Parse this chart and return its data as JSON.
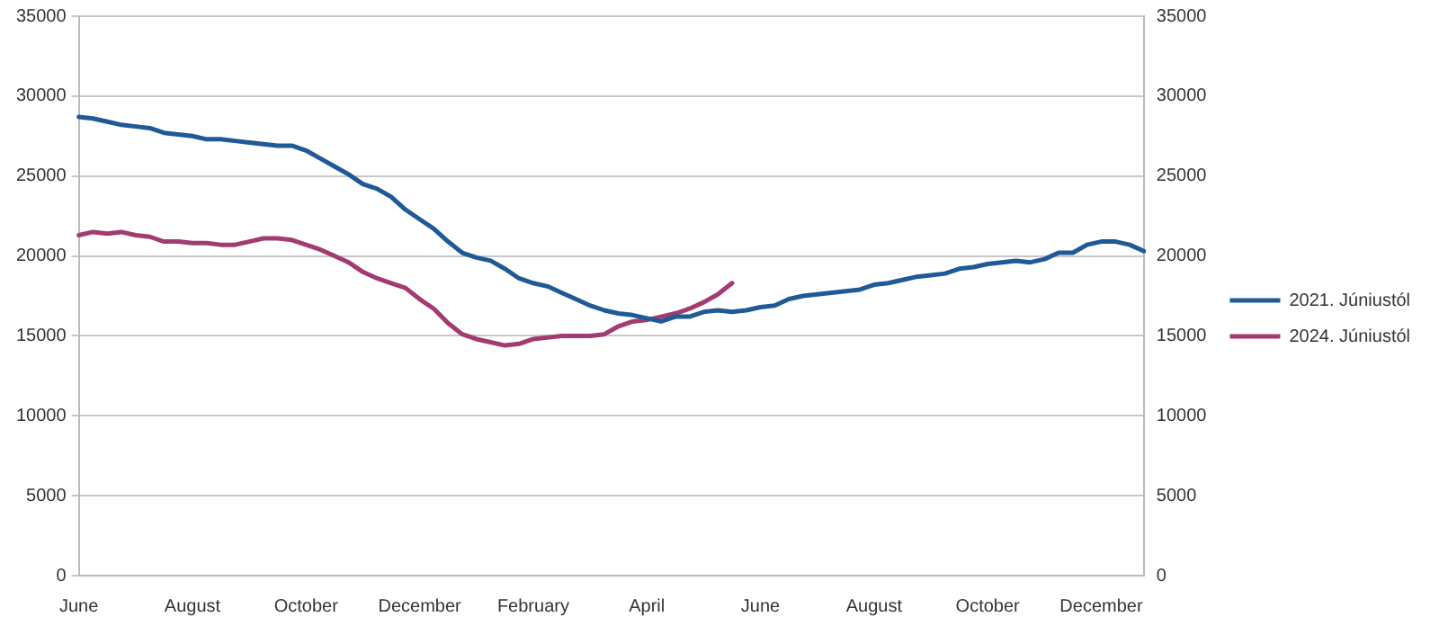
{
  "chart_data": {
    "type": "line",
    "categories": [
      "June",
      null,
      null,
      null,
      null,
      null,
      null,
      null,
      "August",
      null,
      null,
      null,
      null,
      null,
      null,
      null,
      "October",
      null,
      null,
      null,
      null,
      null,
      null,
      null,
      "December",
      null,
      null,
      null,
      null,
      null,
      null,
      null,
      "February",
      null,
      null,
      null,
      null,
      null,
      null,
      null,
      "April",
      null,
      null,
      null,
      null,
      null,
      null,
      null,
      "June",
      null,
      null,
      null,
      null,
      null,
      null,
      null,
      "August",
      null,
      null,
      null,
      null,
      null,
      null,
      null,
      "October",
      null,
      null,
      null,
      null,
      null,
      null,
      null,
      "December",
      null,
      null,
      null
    ],
    "ylim": [
      0,
      35000
    ],
    "yticks": [
      0,
      5000,
      10000,
      15000,
      20000,
      25000,
      30000,
      35000
    ],
    "y2lim": [
      0,
      35000
    ],
    "y2ticks": [
      0,
      5000,
      10000,
      15000,
      20000,
      25000,
      30000,
      35000
    ],
    "grid": "y",
    "legend": "right",
    "marker": "none",
    "line_style": "solid",
    "series": [
      {
        "name": "2021. Júniustól",
        "color": "#1f5a96",
        "values": [
          28700,
          28600,
          28400,
          28200,
          28100,
          28000,
          27700,
          27600,
          27500,
          27300,
          27300,
          27200,
          27100,
          27000,
          26900,
          26900,
          26600,
          26100,
          25600,
          25100,
          24500,
          24200,
          23700,
          22900,
          22300,
          21700,
          20900,
          20200,
          19900,
          19700,
          19200,
          18600,
          18300,
          18100,
          17700,
          17300,
          16900,
          16600,
          16400,
          16300,
          16100,
          15900,
          16200,
          16200,
          16500,
          16600,
          16500,
          16600,
          16800,
          16900,
          17300,
          17500,
          17600,
          17700,
          17800,
          17900,
          18200,
          18300,
          18500,
          18700,
          18800,
          18900,
          19200,
          19300,
          19500,
          19600,
          19700,
          19600,
          19800,
          20200,
          20200,
          20700,
          20900,
          20900,
          20700,
          20300
        ]
      },
      {
        "name": "2024. Júniustól",
        "color": "#a23b72",
        "values": [
          21300,
          21500,
          21400,
          21500,
          21300,
          21200,
          20900,
          20900,
          20800,
          20800,
          20700,
          20700,
          20900,
          21100,
          21100,
          21000,
          20700,
          20400,
          20000,
          19600,
          19000,
          18600,
          18300,
          18000,
          17300,
          16700,
          15800,
          15100,
          14800,
          14600,
          14400,
          14500,
          14800,
          14900,
          15000,
          15000,
          15000,
          15100,
          15600,
          15900,
          16000,
          16200,
          16400,
          16700,
          17100,
          17600,
          18300,
          null,
          null,
          null,
          null,
          null,
          null,
          null,
          null,
          null,
          null,
          null,
          null,
          null,
          null,
          null,
          null,
          null,
          null,
          null,
          null,
          null,
          null,
          null,
          null,
          null,
          null,
          null,
          null,
          null
        ]
      }
    ]
  }
}
